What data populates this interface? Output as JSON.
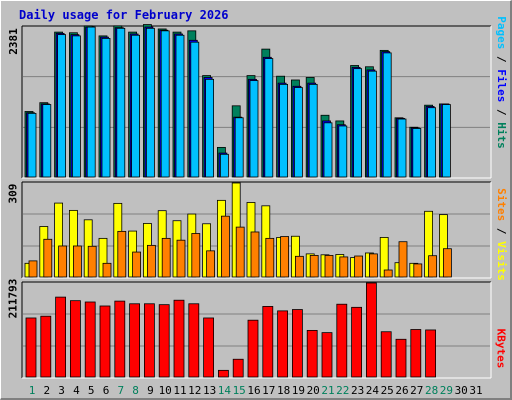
{
  "title": "Daily usage for February 2026",
  "colors": {
    "hits": "#00805c",
    "files": "#0000ff",
    "pages": "#00c0ff",
    "visits": "#ffff00",
    "sites": "#ff8000",
    "kbytes": "#ff0000",
    "weekend_day": "#00805c",
    "weekday": "#000000",
    "title": "#0000cc"
  },
  "chart_data": [
    {
      "type": "bar",
      "name": "hits-files-pages",
      "categories": [
        "1",
        "2",
        "3",
        "4",
        "5",
        "6",
        "7",
        "8",
        "9",
        "10",
        "11",
        "12",
        "13",
        "14",
        "15",
        "16",
        "17",
        "18",
        "19",
        "20",
        "21",
        "22",
        "23",
        "24",
        "25",
        "26",
        "27",
        "28",
        "29",
        "30",
        "31"
      ],
      "ymax_label": "2381",
      "ylim": [
        0,
        2381
      ],
      "series_label_parts": [
        "Pages",
        "Files",
        "Hits"
      ],
      "series": [
        {
          "name": "Hits",
          "values": [
            1040,
            1180,
            2300,
            2290,
            2400,
            2240,
            2400,
            2300,
            2420,
            2350,
            2300,
            2320,
            1610,
            470,
            1130,
            1610,
            2030,
            1600,
            1540,
            1580,
            980,
            890,
            1770,
            1750,
            2010,
            940,
            790,
            1140,
            1160,
            null,
            null
          ]
        },
        {
          "name": "Files",
          "values": [
            1020,
            1160,
            2280,
            2260,
            2380,
            2220,
            2370,
            2270,
            2380,
            2330,
            2270,
            2170,
            1580,
            380,
            950,
            1550,
            1900,
            1490,
            1440,
            1490,
            890,
            830,
            1740,
            1700,
            1990,
            930,
            780,
            1120,
            1160,
            null,
            null
          ]
        },
        {
          "name": "Pages",
          "values": [
            1010,
            1150,
            2260,
            2240,
            2380,
            2200,
            2360,
            2250,
            2360,
            2320,
            2250,
            2140,
            1550,
            360,
            940,
            1530,
            1880,
            1470,
            1420,
            1470,
            860,
            810,
            1720,
            1680,
            1970,
            920,
            770,
            1100,
            1150,
            null,
            null
          ]
        }
      ]
    },
    {
      "type": "bar",
      "name": "visits-sites",
      "categories": [
        "1",
        "2",
        "3",
        "4",
        "5",
        "6",
        "7",
        "8",
        "9",
        "10",
        "11",
        "12",
        "13",
        "14",
        "15",
        "16",
        "17",
        "18",
        "19",
        "20",
        "21",
        "22",
        "23",
        "24",
        "25",
        "26",
        "27",
        "28",
        "29",
        "30",
        "31"
      ],
      "ymax_label": "309",
      "ylim": [
        0,
        309
      ],
      "series_label_parts": [
        "Sites",
        "Visits"
      ],
      "series": [
        {
          "name": "Visits",
          "values": [
            45,
            166,
            243,
            219,
            188,
            127,
            242,
            151,
            176,
            218,
            185,
            207,
            175,
            252,
            309,
            245,
            234,
            130,
            134,
            76,
            73,
            74,
            64,
            79,
            130,
            47,
            45,
            216,
            205,
            null,
            null
          ]
        },
        {
          "name": "Sites",
          "values": [
            53,
            124,
            102,
            102,
            101,
            45,
            150,
            82,
            104,
            127,
            121,
            143,
            86,
            200,
            164,
            148,
            127,
            133,
            68,
            71,
            71,
            66,
            69,
            76,
            23,
            116,
            43,
            70,
            93,
            null,
            null
          ]
        }
      ]
    },
    {
      "type": "bar",
      "name": "kbytes",
      "categories": [
        "1",
        "2",
        "3",
        "4",
        "5",
        "6",
        "7",
        "8",
        "9",
        "10",
        "11",
        "12",
        "13",
        "14",
        "15",
        "16",
        "17",
        "18",
        "19",
        "20",
        "21",
        "22",
        "23",
        "24",
        "25",
        "26",
        "27",
        "28",
        "29",
        "30",
        "31"
      ],
      "ymax_label": "211793",
      "ylim": [
        0,
        211793
      ],
      "series_label_parts": [
        "KBytes"
      ],
      "series": [
        {
          "name": "KBytes",
          "values": [
            133000,
            137000,
            180000,
            172000,
            169000,
            160000,
            171000,
            165000,
            165000,
            163000,
            173000,
            165000,
            133000,
            15000,
            40000,
            128000,
            159000,
            149000,
            152000,
            105000,
            100000,
            164000,
            157000,
            211793,
            102000,
            85000,
            107000,
            106000,
            null,
            null,
            null
          ]
        }
      ]
    }
  ],
  "weekend_days": [
    1,
    7,
    8,
    14,
    15,
    21,
    22,
    28,
    29
  ]
}
